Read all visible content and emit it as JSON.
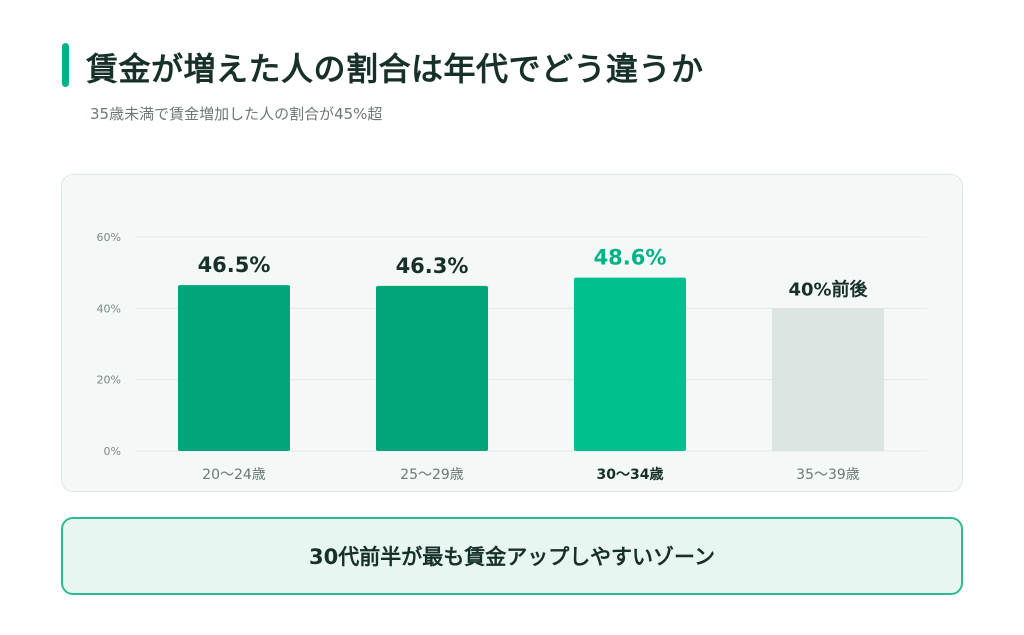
{
  "header": {
    "title": "賃金が増えた人の割合は年代でどう違うか",
    "subtitle": "35歳未満で賃金増加した人の割合が45%超"
  },
  "colors": {
    "accent": "#00b386",
    "bar_primary": "#00a67a",
    "bar_highlight": "#00c08e",
    "bar_muted": "#dce5e1",
    "grid": "#e3e9e6"
  },
  "chart_data": {
    "type": "bar",
    "categories": [
      "20〜24歳",
      "25〜29歳",
      "30〜34歳",
      "35〜39歳"
    ],
    "values": [
      46.5,
      46.3,
      48.6,
      40
    ],
    "data_labels": [
      "46.5%",
      "46.3%",
      "48.6%",
      "40%前後"
    ],
    "highlight_index": 2,
    "muted_index": 3,
    "ylim": [
      0,
      60
    ],
    "yticks": [
      0,
      20,
      40,
      60
    ],
    "ytick_labels": [
      "0%",
      "20%",
      "40%",
      "60%"
    ],
    "xlabel": "",
    "ylabel": "",
    "grid": true
  },
  "callout": {
    "text": "30代前半が最も賃金アップしやすいゾーン"
  }
}
